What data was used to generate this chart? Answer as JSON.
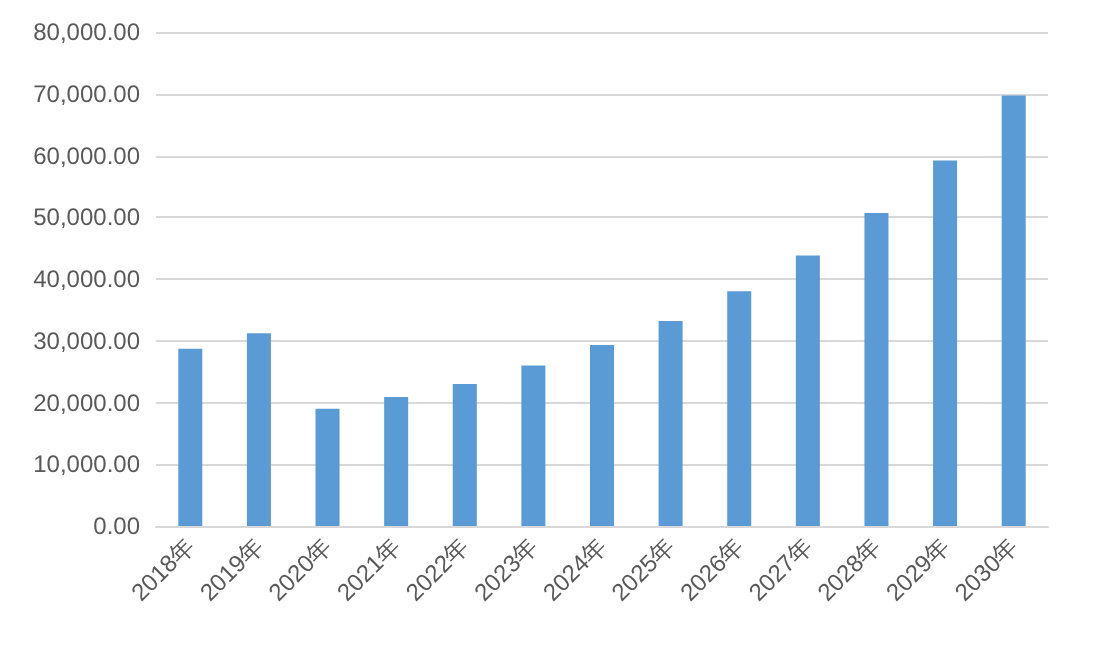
{
  "chart_data": {
    "type": "bar",
    "categories": [
      "2018年",
      "2019年",
      "2020年",
      "2021年",
      "2022年",
      "2023年",
      "2024年",
      "2025年",
      "2026年",
      "2027年",
      "2028年",
      "2029年",
      "2030年"
    ],
    "values": [
      28700,
      31200,
      19000,
      20900,
      23000,
      26000,
      29300,
      33200,
      38000,
      43800,
      50700,
      59200,
      69700
    ],
    "color": "#5b9bd5",
    "ylim": [
      0,
      80000
    ],
    "yticks": [
      {
        "value": 0,
        "label": "0.00"
      },
      {
        "value": 10000,
        "label": "10,000.00"
      },
      {
        "value": 20000,
        "label": "20,000.00"
      },
      {
        "value": 30000,
        "label": "30,000.00"
      },
      {
        "value": 40000,
        "label": "40,000.00"
      },
      {
        "value": 50000,
        "label": "50,000.00"
      },
      {
        "value": 60000,
        "label": "60,000.00"
      },
      {
        "value": 70000,
        "label": "70,000.00"
      },
      {
        "value": 80000,
        "label": "80,000.00"
      }
    ],
    "grid": "y"
  }
}
